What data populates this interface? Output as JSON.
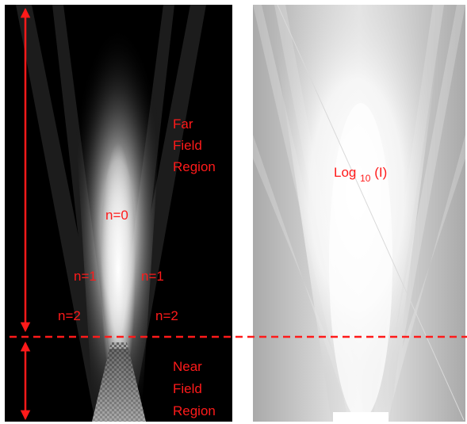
{
  "colors": {
    "annotation": "#ff1a1a",
    "left_background": "#000000",
    "right_background": "#f4f4f4"
  },
  "left_panel": {
    "scale": "linear intensity",
    "far_field_lines": [
      "Far",
      "Field",
      "Region"
    ],
    "near_field_lines": [
      "Near",
      "Field",
      "Region"
    ],
    "order_labels": {
      "center": "n=0",
      "first_left": "n=1",
      "first_right": "n=1",
      "second_left": "n=2",
      "second_right": "n=2"
    }
  },
  "right_panel": {
    "scale": "logarithmic intensity",
    "label_base": "Log",
    "label_subscript": "10",
    "label_suffix": " (I)"
  },
  "annotations": {
    "boundary_line": "dashed",
    "far_field_arrow": "double-headed",
    "near_field_arrow": "double-headed"
  }
}
